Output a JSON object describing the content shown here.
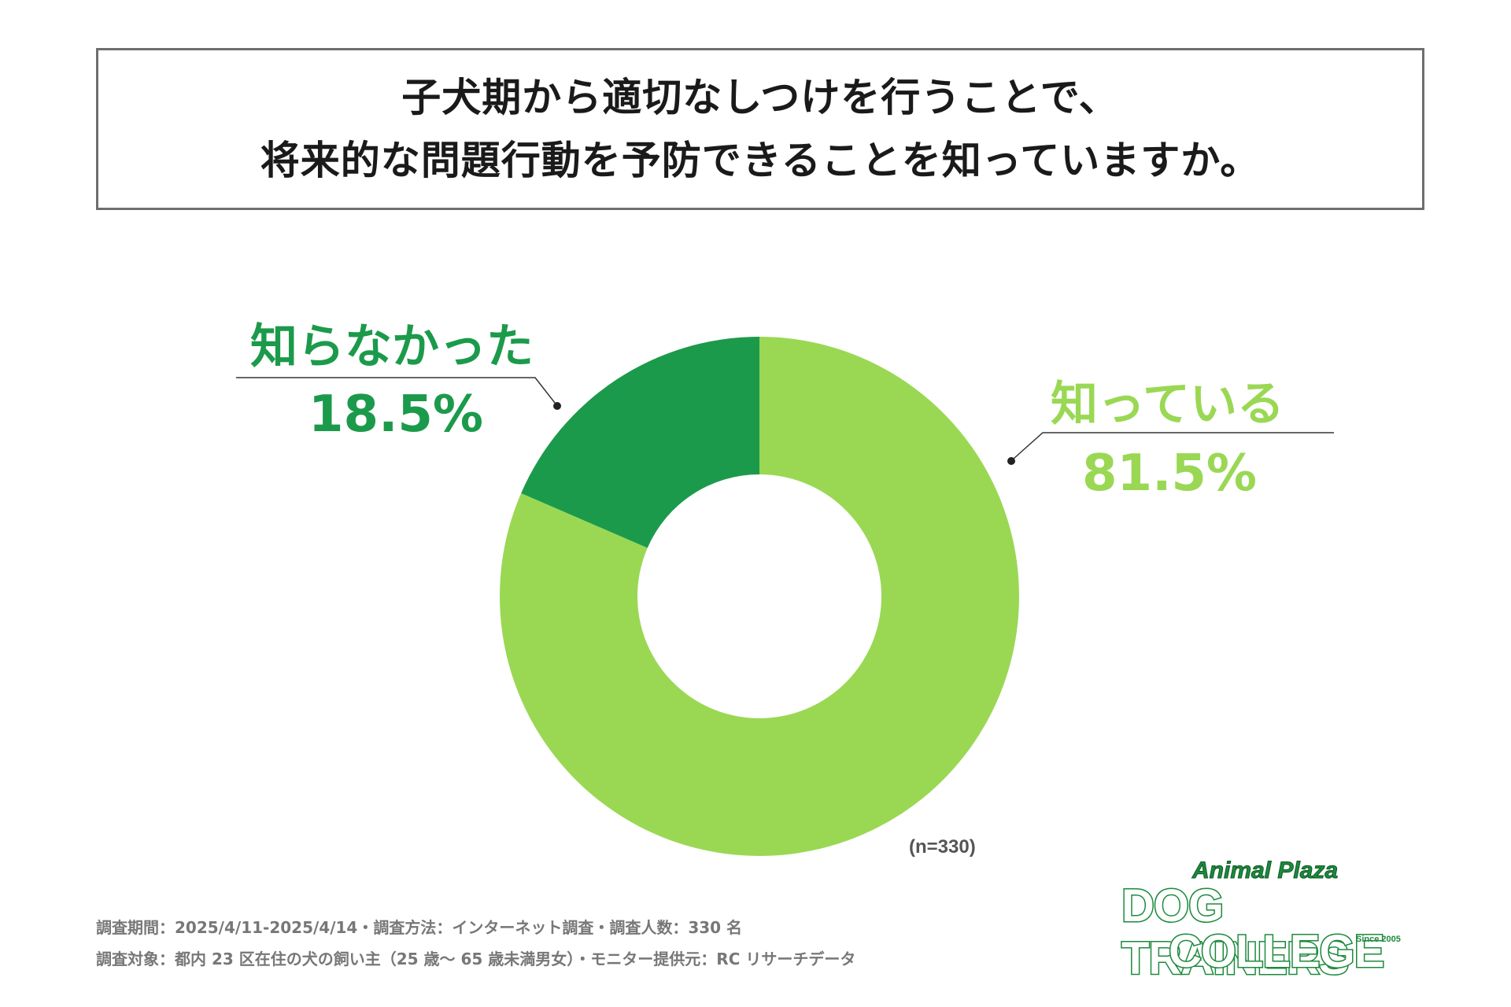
{
  "title": {
    "line1": "子犬期から適切なしつけを行うことで、",
    "line2": "将来的な問題行動を予防できることを知っていますか。"
  },
  "chart_data": {
    "type": "pie",
    "style": "donut",
    "categories": [
      "知っている",
      "知らなかった"
    ],
    "values": [
      81.5,
      18.5
    ],
    "value_labels": [
      "81.5%",
      "18.5%"
    ],
    "colors": [
      "#9ad854",
      "#1c9a4b"
    ],
    "sample_size": "(n=330)"
  },
  "footnotes": {
    "line1": "調査期間：2025/4/11-2025/4/14・調査方法：インターネット調査・調査人数：330 名",
    "line2": "調査対象：都内 23 区在住の犬の飼い主（25 歳〜 65 歳未満男女）・モニター提供元：RC リサーチデータ"
  },
  "logo": {
    "top": "Animal Plaza",
    "mid": "DOG TRAINERS",
    "bottom": "COLLEGE",
    "since": "Since 2005"
  }
}
